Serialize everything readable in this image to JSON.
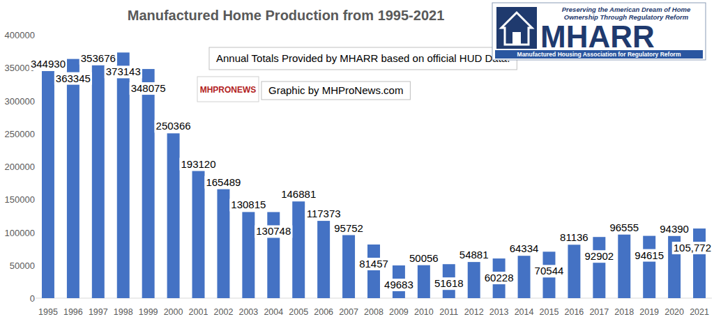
{
  "chart_data": {
    "type": "bar",
    "title": "Manufactured Home Production from 1995-2021",
    "annotations": [
      "Annual Totals Provided by MHARR based on official HUD Data.",
      "Graphic by MHProNews.com",
      "MHARR",
      "Preserving the American Dream of Home Ownership Through Regulatory Reform",
      "Manufactured Housing Association for Regulatory Reform",
      "MHPRONEWS"
    ],
    "categories": [
      "1995",
      "1996",
      "1997",
      "1998",
      "1999",
      "2000",
      "2001",
      "2002",
      "2003",
      "2004",
      "2005",
      "2006",
      "2007",
      "2008",
      "2009",
      "2010",
      "2011",
      "2012",
      "2013",
      "2014",
      "2015",
      "2016",
      "2017",
      "2018",
      "2019",
      "2020",
      "2021"
    ],
    "values": [
      344930,
      363345,
      353676,
      373143,
      348075,
      250366,
      193120,
      165489,
      130815,
      130748,
      146881,
      117373,
      95752,
      81457,
      49683,
      50056,
      51618,
      54881,
      60228,
      64334,
      70544,
      81136,
      92902,
      96555,
      94615,
      94390,
      105772
    ],
    "value_labels": [
      "344930",
      "363345",
      "353676",
      "373143",
      "348075",
      "250366",
      "193120",
      "165489",
      "130815",
      "130748",
      "146881",
      "117373",
      "95752",
      "81457",
      "49683",
      "50056",
      "51618",
      "54881",
      "60228",
      "64334",
      "70544",
      "81136",
      "92902",
      "96555",
      "94615",
      "94390",
      "105,772"
    ],
    "color": "#4472c4",
    "ylim": [
      0,
      400000
    ],
    "yticks": [
      0,
      50000,
      100000,
      150000,
      200000,
      250000,
      300000,
      350000,
      400000
    ],
    "grid": false,
    "data_labels": true
  }
}
